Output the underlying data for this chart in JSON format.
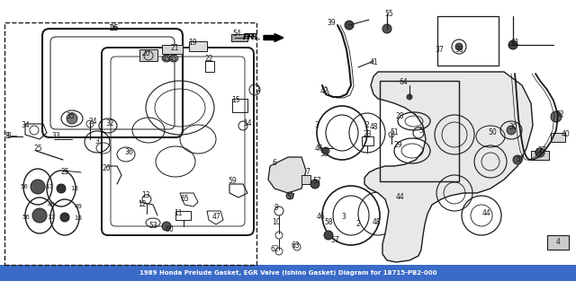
{
  "title": "1989 Honda Prelude Gasket, EGR Valve (Ishino Gasket) Diagram for 18715-PB2-000",
  "bg_color": "#ffffff",
  "line_color": "#1a1a1a",
  "fig_width": 6.4,
  "fig_height": 3.13,
  "dpi": 100,
  "border_color": "#3a6bc8",
  "lw": 0.8
}
